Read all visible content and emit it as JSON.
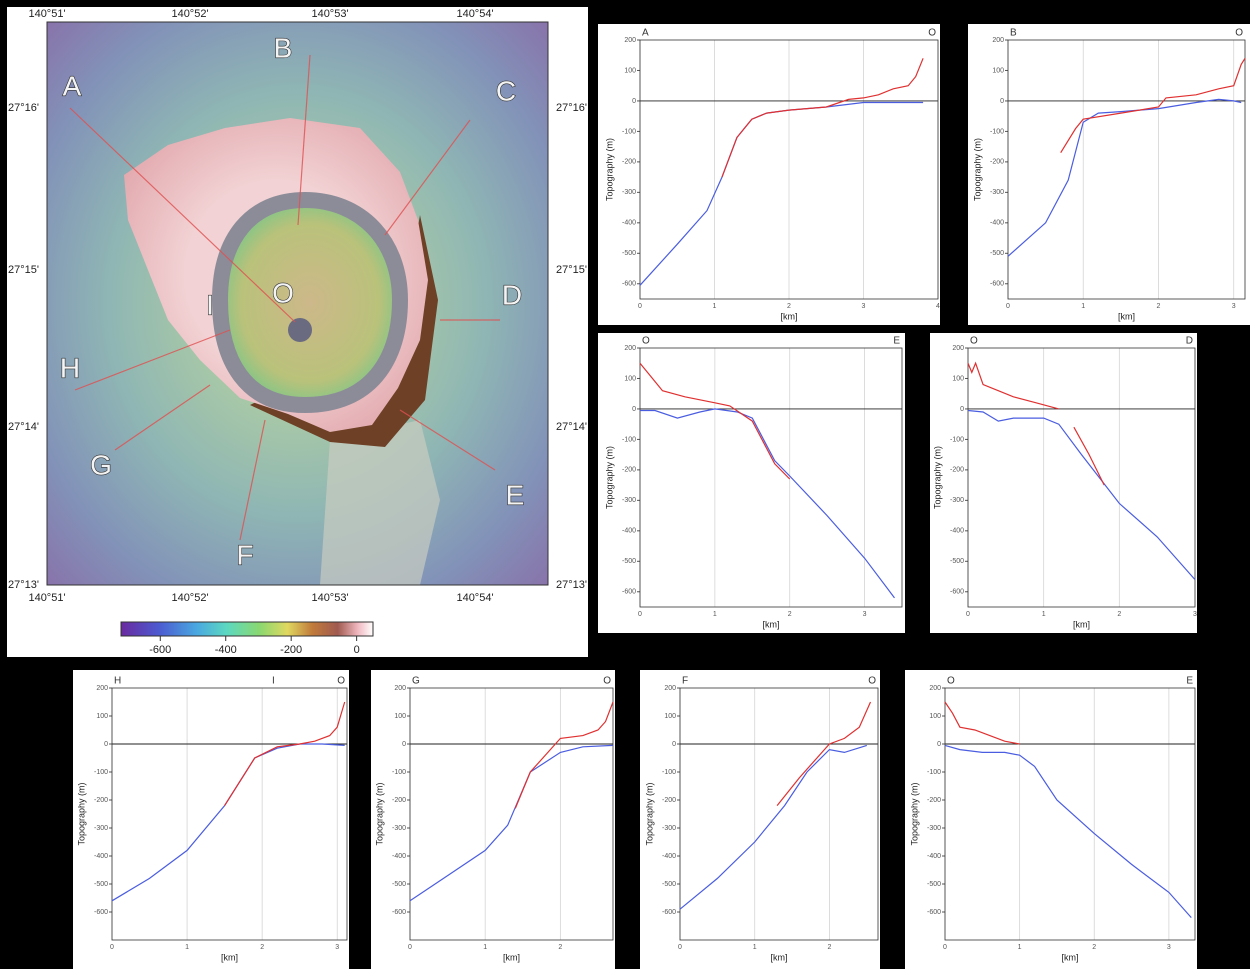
{
  "map": {
    "lon_labels": [
      "140°51'",
      "140°52'",
      "140°53'",
      "140°54'"
    ],
    "lat_labels": [
      "27°16'",
      "27°15'",
      "27°14'",
      "27°13'"
    ],
    "profile_labels": [
      "A",
      "B",
      "C",
      "D",
      "E",
      "F",
      "G",
      "H",
      "I",
      "O"
    ],
    "colorbar": {
      "lim": [
        -720,
        50
      ],
      "ticks": [
        -600,
        -400,
        -200,
        0
      ]
    }
  },
  "chart_data": [
    {
      "type": "line",
      "start_label": "A",
      "end_label": "O",
      "ylabel": "Topography (m)",
      "xlabel": "[km]",
      "xlim": [
        0,
        4
      ],
      "xticks": [
        0,
        1,
        2,
        3,
        4
      ],
      "ylim": [
        -650,
        200
      ],
      "yticks": [
        200,
        100,
        0,
        -100,
        -200,
        -300,
        -400,
        -500,
        -600
      ],
      "grid": "x",
      "series": [
        {
          "color": "#4a5de0",
          "x": [
            0,
            0.5,
            0.9,
            1.1,
            1.3,
            1.5,
            1.7,
            2.0,
            2.5,
            3.0,
            3.5,
            3.8
          ],
          "values": [
            -605,
            -470,
            -360,
            -250,
            -120,
            -60,
            -40,
            -30,
            -20,
            -5,
            -5,
            -5
          ]
        },
        {
          "color": "#e03030",
          "x": [
            1.1,
            1.3,
            1.5,
            1.7,
            2.0,
            2.5,
            2.8,
            3.0,
            3.2,
            3.4,
            3.6,
            3.7,
            3.8
          ],
          "values": [
            -250,
            -120,
            -60,
            -40,
            -30,
            -20,
            5,
            10,
            20,
            40,
            50,
            80,
            140
          ]
        }
      ]
    },
    {
      "type": "line",
      "start_label": "B",
      "end_label": "O",
      "ylabel": "Topography (m)",
      "xlabel": "[km]",
      "xlim": [
        0,
        3.15
      ],
      "xticks": [
        0,
        1,
        2,
        3
      ],
      "ylim": [
        -650,
        200
      ],
      "yticks": [
        200,
        100,
        0,
        -100,
        -200,
        -300,
        -400,
        -500,
        -600
      ],
      "grid": "x",
      "series": [
        {
          "color": "#4a5de0",
          "x": [
            0,
            0.5,
            0.8,
            1.0,
            1.2,
            1.5,
            2.0,
            2.5,
            2.8,
            3.0,
            3.1
          ],
          "values": [
            -510,
            -400,
            -260,
            -70,
            -40,
            -35,
            -25,
            -5,
            5,
            0,
            -5
          ]
        },
        {
          "color": "#e03030",
          "x": [
            0.7,
            0.9,
            1.0,
            1.5,
            2.0,
            2.1,
            2.5,
            2.8,
            3.0,
            3.1,
            3.15
          ],
          "values": [
            -170,
            -90,
            -60,
            -40,
            -20,
            10,
            20,
            40,
            50,
            120,
            140
          ]
        }
      ]
    },
    {
      "type": "line",
      "start_label": "O",
      "end_label": "E",
      "ylabel": "Topography (m)",
      "xlabel": "[km]",
      "xlim": [
        0,
        3.5
      ],
      "xticks": [
        0,
        1,
        2,
        3
      ],
      "ylim": [
        -650,
        200
      ],
      "yticks": [
        200,
        100,
        0,
        -100,
        -200,
        -300,
        -400,
        -500,
        -600
      ],
      "grid": "x",
      "series": [
        {
          "color": "#4a5de0",
          "x": [
            0,
            0.2,
            0.5,
            0.8,
            1.0,
            1.3,
            1.5,
            1.8,
            2.0,
            2.5,
            3.0,
            3.4
          ],
          "values": [
            -5,
            -5,
            -30,
            -10,
            0,
            -10,
            -30,
            -170,
            -220,
            -350,
            -490,
            -620
          ]
        },
        {
          "color": "#e03030",
          "x": [
            0,
            0.1,
            0.3,
            0.6,
            1.0,
            1.2,
            1.5,
            1.8,
            2.0
          ],
          "values": [
            150,
            120,
            60,
            40,
            20,
            10,
            -40,
            -180,
            -230
          ]
        }
      ]
    },
    {
      "type": "line",
      "start_label": "O",
      "end_label": "D",
      "ylabel": "Topography (m)",
      "xlabel": "[km]",
      "xlim": [
        0,
        3
      ],
      "xticks": [
        0,
        1,
        2,
        3
      ],
      "ylim": [
        -650,
        200
      ],
      "yticks": [
        200,
        100,
        0,
        -100,
        -200,
        -300,
        -400,
        -500,
        -600
      ],
      "grid": "x",
      "series": [
        {
          "color": "#4a5de0",
          "x": [
            0,
            0.2,
            0.4,
            0.6,
            1.0,
            1.2,
            1.5,
            2.0,
            2.5,
            3.0
          ],
          "values": [
            -5,
            -10,
            -40,
            -30,
            -30,
            -50,
            -150,
            -310,
            -420,
            -560
          ]
        },
        {
          "color": "#e03030",
          "x": [
            0,
            0.05,
            0.1,
            0.2,
            0.4,
            0.6,
            0.9,
            1.2,
            1.3,
            1.4,
            1.6,
            1.8
          ],
          "values": [
            150,
            120,
            150,
            80,
            60,
            40,
            20,
            0,
            null,
            -60,
            -150,
            -250
          ]
        }
      ]
    },
    {
      "type": "line",
      "start_label": "H",
      "end_label": "O",
      "annotations": [
        {
          "text": "I",
          "x": 2.15
        }
      ],
      "ylabel": "Topography (m)",
      "xlabel": "[km]",
      "xlim": [
        0,
        3.13
      ],
      "xticks": [
        0,
        1,
        2,
        3
      ],
      "ylim": [
        -700,
        200
      ],
      "yticks": [
        200,
        100,
        0,
        -100,
        -200,
        -300,
        -400,
        -500,
        -600
      ],
      "grid": "x",
      "series": [
        {
          "color": "#4a5de0",
          "x": [
            0,
            0.5,
            1.0,
            1.5,
            1.9,
            2.2,
            2.5,
            2.8,
            3.1
          ],
          "values": [
            -560,
            -480,
            -380,
            -220,
            -50,
            -15,
            0,
            0,
            -5
          ]
        },
        {
          "color": "#e03030",
          "x": [
            1.5,
            1.9,
            2.2,
            2.5,
            2.7,
            2.9,
            3.0,
            3.1
          ],
          "values": [
            -220,
            -50,
            -10,
            0,
            10,
            30,
            60,
            150
          ]
        }
      ]
    },
    {
      "type": "line",
      "start_label": "G",
      "end_label": "O",
      "ylabel": "Topography (m)",
      "xlabel": "[km]",
      "xlim": [
        0,
        2.7
      ],
      "xticks": [
        0,
        1,
        2
      ],
      "ylim": [
        -700,
        200
      ],
      "yticks": [
        200,
        100,
        0,
        -100,
        -200,
        -300,
        -400,
        -500,
        -600
      ],
      "grid": "x",
      "series": [
        {
          "color": "#4a5de0",
          "x": [
            0,
            0.5,
            1.0,
            1.3,
            1.6,
            2.0,
            2.3,
            2.7
          ],
          "values": [
            -560,
            -470,
            -380,
            -290,
            -100,
            -30,
            -10,
            -5
          ]
        },
        {
          "color": "#e03030",
          "x": [
            1.4,
            1.6,
            2.0,
            2.3,
            2.5,
            2.6,
            2.7
          ],
          "values": [
            -230,
            -100,
            20,
            30,
            50,
            80,
            150
          ]
        }
      ]
    },
    {
      "type": "line",
      "start_label": "F",
      "end_label": "O",
      "ylabel": "Topography (m)",
      "xlabel": "[km]",
      "xlim": [
        0,
        2.65
      ],
      "xticks": [
        0,
        1,
        2
      ],
      "ylim": [
        -700,
        200
      ],
      "yticks": [
        200,
        100,
        0,
        -100,
        -200,
        -300,
        -400,
        -500,
        -600
      ],
      "grid": "x",
      "series": [
        {
          "color": "#4a5de0",
          "x": [
            0,
            0.5,
            1.0,
            1.4,
            1.7,
            2.0,
            2.2,
            2.5
          ],
          "values": [
            -590,
            -480,
            -350,
            -220,
            -100,
            -20,
            -30,
            -5
          ]
        },
        {
          "color": "#e03030",
          "x": [
            1.3,
            1.6,
            2.0,
            2.2,
            2.4,
            2.55
          ],
          "values": [
            -220,
            -120,
            0,
            20,
            60,
            150
          ]
        }
      ]
    },
    {
      "type": "line",
      "start_label": "O",
      "end_label": "E",
      "ylabel": "Topography (m)",
      "xlabel": "[km]",
      "xlim": [
        0,
        3.35
      ],
      "xticks": [
        0,
        1,
        2,
        3
      ],
      "ylim": [
        -700,
        200
      ],
      "yticks": [
        200,
        100,
        0,
        -100,
        -200,
        -300,
        -400,
        -500,
        -600
      ],
      "grid": "x",
      "series": [
        {
          "color": "#4a5de0",
          "x": [
            0,
            0.2,
            0.5,
            0.8,
            1.0,
            1.2,
            1.5,
            2.0,
            2.5,
            3.0,
            3.3
          ],
          "values": [
            -5,
            -20,
            -30,
            -30,
            -40,
            -80,
            -200,
            -320,
            -430,
            -530,
            -620
          ]
        },
        {
          "color": "#e03030",
          "x": [
            0,
            0.1,
            0.2,
            0.4,
            0.6,
            0.8,
            1.0
          ],
          "values": [
            150,
            110,
            60,
            50,
            30,
            10,
            0
          ]
        }
      ]
    }
  ]
}
